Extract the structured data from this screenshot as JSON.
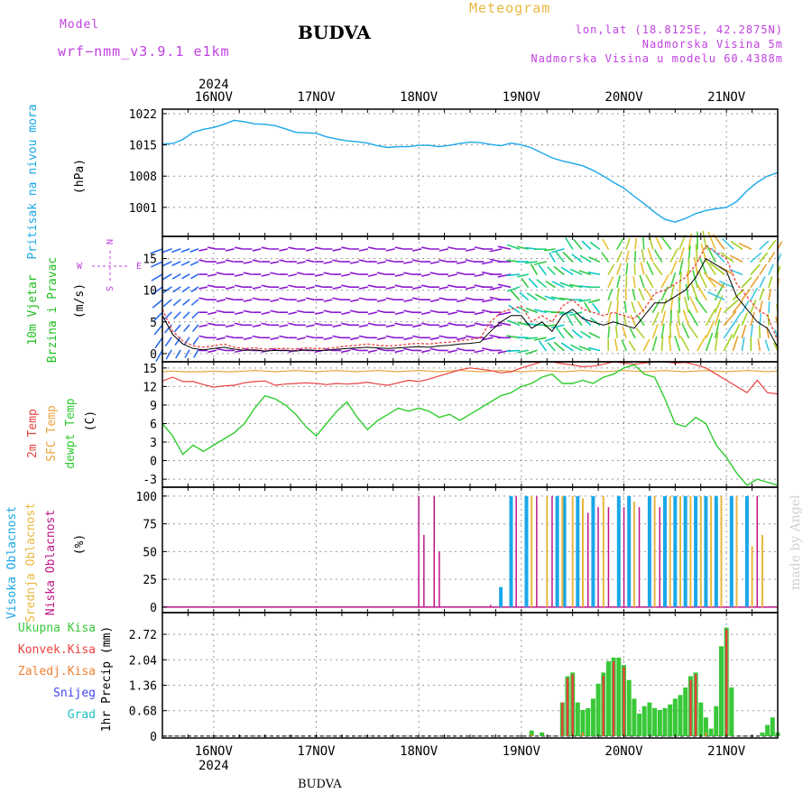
{
  "header": {
    "model_label": "Model",
    "model_name": "wrf−nmm_v3.9.1 e1km",
    "station": "BUDVA",
    "meteogram": "Meteogram",
    "lonlat": "lon,lat (18.8125E, 42.2875N)",
    "elev": "Nadmorska Visina 5m",
    "model_elev": "Nadmorska Visina u modelu 60.4388m"
  },
  "footer": {
    "station": "BUDVA",
    "watermark": "made by Angel"
  },
  "colors": {
    "pressure": "#1aa7e8",
    "temp2m": "#e8413e",
    "sfc": "#e8a43e",
    "dew": "#2ecc2e",
    "high": "#1aa7e8",
    "mid": "#e8b83e",
    "low": "#c0168a",
    "total": "#38c838",
    "conv": "#e8413e",
    "ice": "#f08030",
    "snow": "#4444ee",
    "grad": "#20c0c0",
    "wind_label": "#20c020",
    "compass": "#c040e0"
  },
  "chart_data": [
    {
      "type": "line",
      "name": "pressure",
      "ylabel_lines": [
        "Pritisak na nivou mora"
      ],
      "unit": "(hPa)",
      "yticks": [
        1001,
        1008,
        1015,
        1022
      ],
      "ylim": [
        994.5,
        1023
      ],
      "x_top_year": "2024",
      "x_ticks": [
        "16NOV",
        "17NOV",
        "18NOV",
        "19NOV",
        "20NOV",
        "21NOV"
      ],
      "x_tick_days": [
        0.5,
        1.5,
        2.5,
        3.5,
        4.5,
        5.5
      ],
      "xlim": [
        0,
        6
      ],
      "days": [
        0,
        0.1,
        0.2,
        0.3,
        0.4,
        0.5,
        0.6,
        0.7,
        0.8,
        0.9,
        1.0,
        1.1,
        1.2,
        1.3,
        1.4,
        1.5,
        1.6,
        1.7,
        1.8,
        1.9,
        2.0,
        2.1,
        2.2,
        2.3,
        2.4,
        2.5,
        2.6,
        2.7,
        2.8,
        2.9,
        3.0,
        3.1,
        3.2,
        3.3,
        3.4,
        3.5,
        3.6,
        3.7,
        3.8,
        3.9,
        4.0,
        4.1,
        4.2,
        4.3,
        4.4,
        4.5,
        4.6,
        4.7,
        4.8,
        4.9,
        5.0,
        5.1,
        5.2,
        5.3,
        5.4,
        5.5,
        5.6,
        5.7,
        5.8,
        5.9,
        6.0
      ],
      "values": [
        1015.2,
        1015.3,
        1016.2,
        1017.8,
        1018.5,
        1018.9,
        1019.6,
        1020.5,
        1020.2,
        1019.7,
        1019.6,
        1019.3,
        1018.6,
        1017.8,
        1017.7,
        1017.6,
        1016.8,
        1016.3,
        1015.9,
        1015.7,
        1015.4,
        1014.8,
        1014.4,
        1014.6,
        1014.6,
        1014.9,
        1014.9,
        1014.6,
        1014.9,
        1015.3,
        1015.6,
        1015.5,
        1015.1,
        1014.8,
        1015.4,
        1015.0,
        1014.3,
        1013.2,
        1012.1,
        1011.4,
        1010.9,
        1010.3,
        1009.3,
        1008.0,
        1006.6,
        1005.3,
        1003.5,
        1001.8,
        999.9,
        998.3,
        997.7,
        998.5,
        999.6,
        1000.3,
        1000.7,
        1001.0,
        1002.3,
        1004.7,
        1006.6,
        1008.0,
        1008.8
      ]
    },
    {
      "type": "line",
      "name": "wind",
      "ylabel_lines": [
        "10m Vjetar",
        "Brzina i Pravac"
      ],
      "unit": "(m/s)",
      "yticks": [
        0,
        5,
        10,
        15
      ],
      "ylim": [
        -1.3,
        18.5
      ],
      "compass": [
        "N",
        "W",
        "E",
        "S"
      ],
      "days": [
        0,
        0.1,
        0.2,
        0.3,
        0.4,
        0.5,
        0.6,
        0.7,
        0.8,
        0.9,
        1.0,
        1.1,
        1.2,
        1.3,
        1.4,
        1.5,
        1.6,
        1.7,
        1.8,
        1.9,
        2.0,
        2.1,
        2.2,
        2.3,
        2.4,
        2.5,
        2.6,
        2.7,
        2.8,
        2.9,
        3.0,
        3.1,
        3.2,
        3.3,
        3.4,
        3.5,
        3.6,
        3.7,
        3.8,
        3.9,
        4.0,
        4.1,
        4.2,
        4.3,
        4.4,
        4.5,
        4.6,
        4.7,
        4.8,
        4.9,
        5.0,
        5.1,
        5.2,
        5.3,
        5.4,
        5.5,
        5.6,
        5.7,
        5.8,
        5.9,
        6.0
      ],
      "speed": [
        6,
        3,
        1.5,
        0.8,
        0.6,
        0.8,
        1.0,
        0.7,
        0.5,
        0.6,
        0.4,
        0.5,
        0.5,
        0.4,
        0.6,
        0.5,
        0.5,
        0.7,
        0.8,
        0.9,
        1.0,
        0.9,
        0.8,
        0.9,
        1.0,
        1.1,
        1.0,
        1.2,
        1.3,
        1.5,
        1.6,
        1.8,
        3.5,
        5,
        6,
        6,
        4,
        5,
        3.5,
        6,
        7,
        5.5,
        5,
        4.5,
        5,
        4.5,
        4,
        6,
        8,
        8,
        9,
        10,
        12,
        15,
        14,
        13,
        9,
        7,
        5,
        4,
        1
      ],
      "gust": [
        7,
        3.5,
        2,
        1.2,
        1.0,
        1.2,
        1.5,
        1.0,
        0.8,
        0.9,
        0.7,
        0.8,
        0.8,
        0.7,
        0.9,
        0.8,
        0.8,
        1.0,
        1.2,
        1.3,
        1.5,
        1.3,
        1.2,
        1.3,
        1.5,
        1.6,
        1.5,
        1.7,
        1.8,
        2.0,
        2.2,
        2.5,
        5,
        6.5,
        7,
        7.5,
        5,
        6,
        5,
        7.5,
        8.5,
        7,
        6.5,
        6,
        6.5,
        6,
        5.5,
        7,
        9.5,
        10,
        11,
        12,
        14,
        17,
        16,
        15,
        11,
        9,
        7,
        6,
        2
      ]
    },
    {
      "type": "line",
      "name": "temperature",
      "ylabel_lines": [
        "2m Temp",
        "SFC Temp",
        "dewpt Temp"
      ],
      "unit": "(C)",
      "yticks": [
        -3,
        0,
        3,
        6,
        9,
        12,
        15
      ],
      "ylim": [
        -4.3,
        16
      ],
      "days": [
        0,
        0.1,
        0.2,
        0.3,
        0.4,
        0.5,
        0.6,
        0.7,
        0.8,
        0.9,
        1.0,
        1.1,
        1.2,
        1.3,
        1.4,
        1.5,
        1.6,
        1.7,
        1.8,
        1.9,
        2.0,
        2.1,
        2.2,
        2.3,
        2.4,
        2.5,
        2.6,
        2.7,
        2.8,
        2.9,
        3.0,
        3.1,
        3.2,
        3.3,
        3.4,
        3.5,
        3.6,
        3.7,
        3.8,
        3.9,
        4.0,
        4.1,
        4.2,
        4.3,
        4.4,
        4.5,
        4.6,
        4.7,
        4.8,
        4.9,
        5.0,
        5.1,
        5.2,
        5.3,
        5.4,
        5.5,
        5.6,
        5.7,
        5.8,
        5.9,
        6.0
      ],
      "temp2m": [
        12.9,
        13.5,
        12.8,
        12.8,
        12.3,
        11.9,
        12.1,
        12.2,
        12.6,
        12.8,
        12.9,
        12.2,
        12.4,
        12.5,
        12.6,
        12.5,
        12.3,
        12.5,
        12.4,
        12.5,
        12.7,
        12.4,
        12.2,
        12.6,
        13.0,
        12.8,
        13.2,
        13.7,
        14.2,
        14.7,
        15.0,
        14.8,
        14.6,
        14.2,
        14.4,
        15.0,
        15.5,
        16.0,
        16.0,
        15.7,
        15.5,
        15.2,
        15.3,
        15.6,
        16.0,
        15.8,
        15.6,
        15.8,
        16.0,
        16.0,
        15.8,
        15.9,
        15.5,
        15.0,
        14.0,
        13.0,
        12.0,
        11.0,
        13.0,
        11.0,
        10.8
      ],
      "sfc": [
        14.4,
        14.5,
        14.4,
        14.4,
        14.4,
        14.5,
        14.4,
        14.4,
        14.5,
        14.6,
        14.5,
        14.4,
        14.5,
        14.6,
        14.5,
        14.4,
        14.5,
        14.6,
        14.5,
        14.4,
        14.5,
        14.6,
        14.5,
        14.4,
        14.5,
        14.6,
        14.5,
        14.4,
        14.5,
        14.6,
        14.5,
        14.4,
        14.5,
        14.6,
        14.5,
        14.4,
        14.5,
        14.6,
        14.5,
        14.4,
        14.5,
        14.6,
        14.5,
        14.4,
        14.5,
        14.6,
        14.5,
        14.4,
        14.5,
        14.6,
        14.5,
        14.4,
        14.5,
        14.6,
        14.5,
        14.4,
        14.5,
        14.6,
        14.5,
        14.4,
        14.5
      ],
      "dew": [
        6.0,
        4.0,
        1.0,
        2.5,
        1.5,
        2.5,
        3.5,
        4.5,
        6.0,
        8.5,
        10.5,
        10.0,
        9.0,
        7.5,
        5.5,
        4.0,
        6.0,
        8.0,
        9.5,
        7.0,
        5.0,
        6.5,
        7.5,
        8.5,
        8.0,
        8.5,
        8.0,
        7.0,
        7.5,
        6.5,
        7.5,
        8.5,
        9.5,
        10.5,
        11.0,
        12.0,
        12.5,
        13.5,
        14.0,
        12.5,
        12.5,
        13.0,
        12.5,
        13.5,
        14.0,
        15.0,
        15.5,
        14.0,
        13.5,
        10.0,
        6.0,
        5.5,
        7.0,
        6.0,
        2.5,
        0.5,
        -2.0,
        -4.0,
        -3.0,
        -3.5,
        -4.0
      ]
    },
    {
      "type": "bar",
      "name": "clouds",
      "ylabel_lines": [
        "Visoka Oblacnost",
        "Srednja Oblacnost",
        "Niska Oblacnost"
      ],
      "unit": "(%)",
      "yticks": [
        0,
        25,
        50,
        75,
        100
      ],
      "ylim": [
        -5,
        108
      ],
      "high": [
        [
          3.3,
          18
        ],
        [
          3.4,
          100
        ],
        [
          3.55,
          100
        ],
        [
          3.85,
          100
        ],
        [
          3.92,
          100
        ],
        [
          4.05,
          100
        ],
        [
          4.2,
          100
        ],
        [
          4.45,
          100
        ],
        [
          4.55,
          100
        ],
        [
          4.75,
          100
        ],
        [
          4.9,
          100
        ],
        [
          5.0,
          100
        ],
        [
          5.1,
          100
        ],
        [
          5.2,
          100
        ],
        [
          5.3,
          100
        ],
        [
          5.4,
          100
        ],
        [
          5.55,
          100
        ],
        [
          5.7,
          100
        ]
      ],
      "mid": [
        [
          3.6,
          100
        ],
        [
          3.75,
          100
        ],
        [
          3.9,
          100
        ],
        [
          4.0,
          100
        ],
        [
          4.1,
          98
        ],
        [
          4.3,
          100
        ],
        [
          4.6,
          95
        ],
        [
          4.8,
          100
        ],
        [
          4.95,
          100
        ],
        [
          5.05,
          100
        ],
        [
          5.15,
          100
        ],
        [
          5.25,
          100
        ],
        [
          5.35,
          100
        ],
        [
          5.45,
          100
        ],
        [
          5.6,
          100
        ],
        [
          5.75,
          55
        ],
        [
          5.85,
          65
        ]
      ],
      "low": [
        [
          2.5,
          100
        ],
        [
          2.55,
          65
        ],
        [
          2.65,
          100
        ],
        [
          2.7,
          50
        ],
        [
          3.2,
          2
        ],
        [
          3.45,
          100
        ],
        [
          3.65,
          100
        ],
        [
          3.8,
          100
        ],
        [
          4.15,
          85
        ],
        [
          4.25,
          90
        ],
        [
          4.35,
          90
        ],
        [
          4.5,
          90
        ],
        [
          4.65,
          90
        ],
        [
          4.85,
          90
        ],
        [
          5.8,
          100
        ]
      ]
    },
    {
      "type": "bar",
      "name": "precipitation",
      "ylabel_lines": [
        "Ukupna Kisa",
        "Konvek.Kisa",
        "Zaledj.Kisa",
        "Snijeg",
        "Grad"
      ],
      "unit": "1hr Precip (mm)",
      "yticks": [
        0,
        0.68,
        1.36,
        2.04,
        2.72
      ],
      "ylim": [
        -0.05,
        3.3
      ],
      "x_bottom_year": "2024",
      "total": [
        [
          3.6,
          0.15
        ],
        [
          3.7,
          0.1
        ],
        [
          3.9,
          0.9
        ],
        [
          3.95,
          1.6
        ],
        [
          4.0,
          1.7
        ],
        [
          4.05,
          0.9
        ],
        [
          4.1,
          0.7
        ],
        [
          4.15,
          0.75
        ],
        [
          4.2,
          1.0
        ],
        [
          4.25,
          1.4
        ],
        [
          4.3,
          1.7
        ],
        [
          4.35,
          2.0
        ],
        [
          4.4,
          2.1
        ],
        [
          4.45,
          2.1
        ],
        [
          4.5,
          1.9
        ],
        [
          4.55,
          1.5
        ],
        [
          4.6,
          1.0
        ],
        [
          4.65,
          0.6
        ],
        [
          4.7,
          0.8
        ],
        [
          4.75,
          0.9
        ],
        [
          4.8,
          0.75
        ],
        [
          4.85,
          0.7
        ],
        [
          4.9,
          0.75
        ],
        [
          4.95,
          0.85
        ],
        [
          5.0,
          1.0
        ],
        [
          5.05,
          1.1
        ],
        [
          5.1,
          1.3
        ],
        [
          5.15,
          1.6
        ],
        [
          5.2,
          1.7
        ],
        [
          5.25,
          0.9
        ],
        [
          5.3,
          0.5
        ],
        [
          5.35,
          0.2
        ],
        [
          5.4,
          0.8
        ],
        [
          5.45,
          2.4
        ],
        [
          5.5,
          2.9
        ],
        [
          5.55,
          1.3
        ],
        [
          5.85,
          0.1
        ],
        [
          5.9,
          0.3
        ],
        [
          5.95,
          0.5
        ],
        [
          6.0,
          0.1
        ]
      ],
      "conv": [
        [
          3.9,
          0.9
        ],
        [
          3.95,
          1.55
        ],
        [
          4.0,
          1.65
        ],
        [
          4.3,
          1.6
        ],
        [
          4.4,
          2.0
        ],
        [
          4.5,
          1.85
        ],
        [
          5.15,
          1.5
        ],
        [
          5.2,
          1.65
        ],
        [
          5.5,
          2.85
        ]
      ],
      "ice": [
        [
          3.6,
          0.05
        ],
        [
          4.1,
          0.1
        ],
        [
          5.3,
          0.1
        ]
      ],
      "snow": [],
      "grad": []
    }
  ]
}
